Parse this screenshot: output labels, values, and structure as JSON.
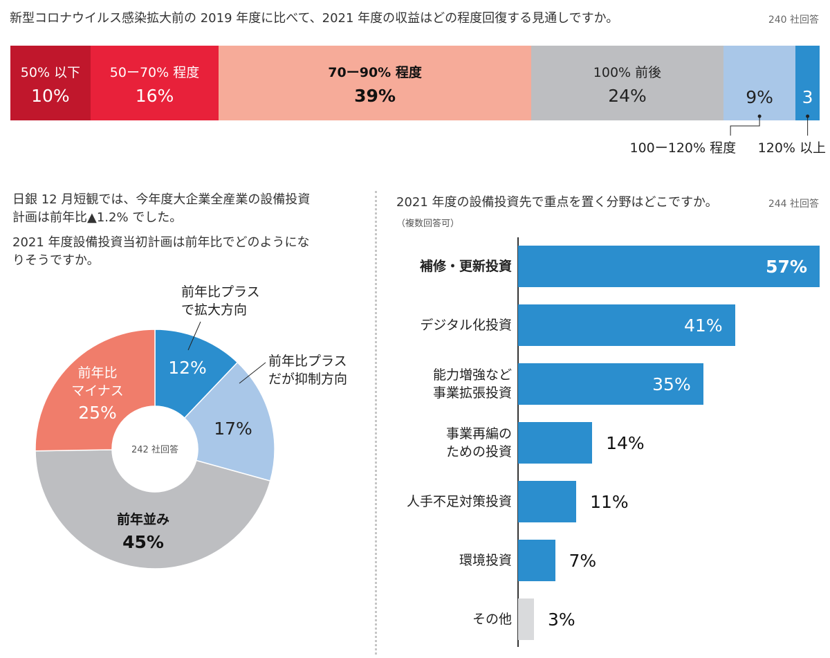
{
  "chart_data": [
    {
      "type": "bar",
      "orientation": "stacked-horizontal",
      "title": "新型コロナウイルス感染拡大前の 2019 年度に比べて、2021 年度の収益はどの程度回復する見通しですか。",
      "respondents": "240 社回答",
      "segments": [
        {
          "label": "50% 以下",
          "value": 10,
          "display": "10%",
          "color": "#c0172c",
          "text_color": "#ffffff",
          "bold": false,
          "label_inside": true
        },
        {
          "label": "50ー70% 程度",
          "value": 16,
          "display": "16%",
          "color": "#e8213a",
          "text_color": "#ffffff",
          "bold": false,
          "label_inside": true
        },
        {
          "label": "70ー90% 程度",
          "value": 39,
          "display": "39%",
          "color": "#f6ab99",
          "text_color": "#111111",
          "bold": true,
          "label_inside": true
        },
        {
          "label": "100% 前後",
          "value": 24,
          "display": "24%",
          "color": "#bdbec1",
          "text_color": "#222222",
          "bold": false,
          "label_inside": true
        },
        {
          "label": "100ー120% 程度",
          "value": 9,
          "display": "9%",
          "color": "#a9c7e8",
          "text_color": "#222222",
          "bold": false,
          "label_inside": false
        },
        {
          "label": "120% 以上",
          "value": 3,
          "display": "3",
          "color": "#2b8ece",
          "text_color": "#ffffff",
          "bold": false,
          "label_inside": false
        }
      ]
    },
    {
      "type": "pie",
      "style": "donut",
      "question_lines": [
        "日銀 12 月短観では、今年度大企業全産業の設備投資",
        "計画は前年比▲1.2% でした。",
        "2021 年度設備投資当初計画は前年比でどのようにな",
        "りそうですか。"
      ],
      "center_text": "242 社回答",
      "slices": [
        {
          "label_lines": [
            "前年比プラス",
            "で拡大方向"
          ],
          "value": 12,
          "display": "12%",
          "color": "#2b8ece"
        },
        {
          "label_lines": [
            "前年比プラス",
            "だが抑制方向"
          ],
          "value": 17,
          "display": "17%",
          "color": "#a9c7e8"
        },
        {
          "label_lines": [
            "前年並み"
          ],
          "value": 45,
          "display": "45%",
          "color": "#bdbec1"
        },
        {
          "label_lines": [
            "前年比",
            "マイナス"
          ],
          "value": 25,
          "display": "25%",
          "color": "#f07d6b"
        }
      ]
    },
    {
      "type": "bar",
      "orientation": "horizontal",
      "title": "2021 年度の設備投資先で重点を置く分野はどこですか。",
      "subtitle": "（複数回答可）",
      "respondents": "244 社回答",
      "xlim": [
        0,
        57
      ],
      "categories": [
        {
          "lines": [
            "補修・更新投資"
          ],
          "value": 57,
          "display": "57%",
          "color": "#2b8ece",
          "bold": true
        },
        {
          "lines": [
            "デジタル化投資"
          ],
          "value": 41,
          "display": "41%",
          "color": "#2b8ece",
          "bold": false
        },
        {
          "lines": [
            "能力増強など",
            "事業拡張投資"
          ],
          "value": 35,
          "display": "35%",
          "color": "#2b8ece",
          "bold": false
        },
        {
          "lines": [
            "事業再編の",
            "ための投資"
          ],
          "value": 14,
          "display": "14%",
          "color": "#2b8ece",
          "bold": false
        },
        {
          "lines": [
            "人手不足対策投資"
          ],
          "value": 11,
          "display": "11%",
          "color": "#2b8ece",
          "bold": false
        },
        {
          "lines": [
            "環境投資"
          ],
          "value": 7,
          "display": "7%",
          "color": "#2b8ece",
          "bold": false
        },
        {
          "lines": [
            "その他"
          ],
          "value": 3,
          "display": "3%",
          "color": "#d9dadc",
          "bold": false
        }
      ]
    }
  ]
}
